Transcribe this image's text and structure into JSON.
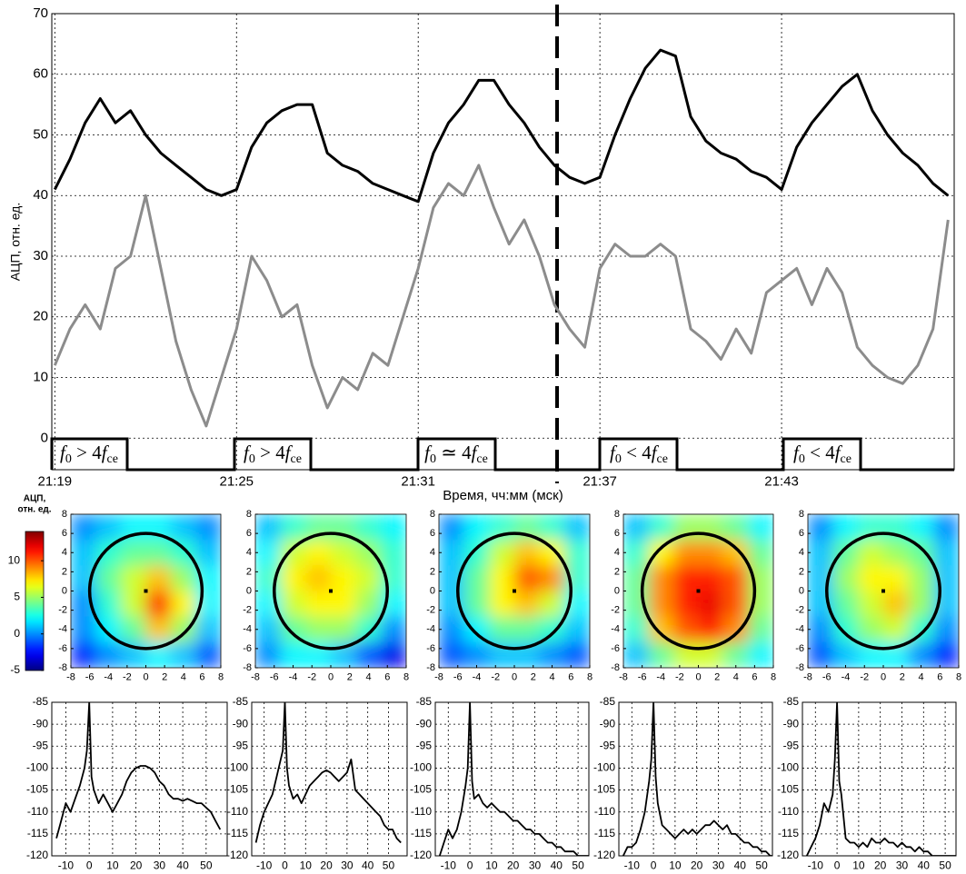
{
  "chart_data": [
    {
      "type": "line",
      "xlabel": "Время, чч:мм (мск)",
      "ylabel": "АЦП, отн. ед.",
      "x": [
        1279,
        1279.5,
        1280,
        1280.5,
        1281,
        1281.5,
        1282,
        1282.5,
        1283,
        1283.5,
        1284,
        1284.5,
        1285,
        1285.5,
        1286,
        1286.5,
        1287,
        1287.5,
        1288,
        1288.5,
        1289,
        1289.5,
        1290,
        1290.5,
        1291,
        1291.5,
        1292,
        1292.5,
        1293,
        1293.5,
        1294,
        1294.5,
        1295,
        1295.5,
        1296,
        1296.5,
        1297,
        1297.5,
        1298,
        1298.5,
        1299,
        1299.5,
        1300,
        1300.5,
        1301,
        1301.5,
        1302,
        1302.5,
        1303,
        1303.5,
        1304,
        1304.5,
        1305,
        1305.5,
        1306,
        1306.5,
        1307,
        1307.5,
        1308,
        1308.5
      ],
      "xlim": [
        1278.9,
        1308.7
      ],
      "xticks": [
        {
          "value": 1279,
          "label": "21:19"
        },
        {
          "value": 1285,
          "label": "21:25"
        },
        {
          "value": 1291,
          "label": "21:31"
        },
        {
          "value": 1297,
          "label": "21:37"
        },
        {
          "value": 1303,
          "label": "21:43"
        }
      ],
      "ylim": [
        -5.2,
        70
      ],
      "yticks": [
        0,
        10,
        20,
        30,
        40,
        50,
        60,
        70
      ],
      "grid": true,
      "series": [
        {
          "color": "#000000",
          "values": [
            41,
            46,
            52,
            56,
            52,
            54,
            50,
            47,
            45,
            43,
            41,
            40,
            41,
            48,
            52,
            54,
            55,
            55,
            47,
            45,
            44,
            42,
            41,
            40,
            39,
            47,
            52,
            55,
            59,
            59,
            55,
            52,
            48,
            45,
            43,
            42,
            43,
            50,
            56,
            61,
            64,
            63,
            53,
            49,
            47,
            46,
            44,
            43,
            41,
            48,
            52,
            55,
            58,
            60,
            54,
            50,
            47,
            45,
            42,
            40
          ]
        },
        {
          "color": "#8c8c8c",
          "values": [
            12,
            18,
            22,
            18,
            28,
            30,
            40,
            28,
            16,
            8,
            2,
            10,
            18,
            30,
            26,
            20,
            22,
            12,
            5,
            10,
            8,
            14,
            12,
            20,
            28,
            38,
            42,
            40,
            45,
            38,
            32,
            36,
            30,
            22,
            18,
            15,
            28,
            32,
            30,
            30,
            32,
            30,
            18,
            16,
            13,
            18,
            14,
            24,
            26,
            28,
            22,
            28,
            24,
            15,
            12,
            10,
            9,
            12,
            18,
            36
          ]
        }
      ],
      "annotations": [
        {
          "parts": [
            "f",
            "0",
            " > 4",
            "f",
            "ce"
          ]
        },
        {
          "parts": [
            "f",
            "0",
            " > 4",
            "f",
            "ce"
          ]
        },
        {
          "parts": [
            "f",
            "0",
            " ≃ 4",
            "f",
            "ce"
          ]
        },
        {
          "parts": [
            "f",
            "0",
            " < 4",
            "f",
            "ce"
          ]
        },
        {
          "parts": [
            "f",
            "0",
            " < 4",
            "f",
            "ce"
          ]
        }
      ]
    },
    {
      "type": "colorbar",
      "label": [
        "АЦП,",
        "отн. ед."
      ],
      "lim": [
        -5,
        14
      ],
      "ticks": [
        -5,
        0,
        5,
        10
      ]
    },
    {
      "type": "heatmap",
      "xlim": [
        -8,
        8
      ],
      "ylim": [
        -8,
        8
      ],
      "xticks": [
        -8,
        -6,
        -4,
        -2,
        0,
        2,
        4,
        6,
        8
      ],
      "yticks": [
        -8,
        -6,
        -4,
        -2,
        0,
        2,
        4,
        6,
        8
      ],
      "z": [
        [
          0,
          1,
          2,
          2,
          1,
          0
        ],
        [
          1,
          3,
          4,
          4,
          3,
          1
        ],
        [
          1,
          4,
          6,
          8,
          5,
          2
        ],
        [
          0,
          3,
          6,
          11,
          7,
          2
        ],
        [
          0,
          2,
          4,
          8,
          5,
          1
        ],
        [
          -2,
          0,
          1,
          2,
          1,
          -1
        ]
      ]
    },
    {
      "type": "heatmap",
      "xlim": [
        -8,
        8
      ],
      "ylim": [
        -8,
        8
      ],
      "xticks": [
        -8,
        -6,
        -4,
        -2,
        0,
        2,
        4,
        6,
        8
      ],
      "yticks": [
        -8,
        -6,
        -4,
        -2,
        0,
        2,
        4,
        6,
        8
      ],
      "z": [
        [
          1,
          3,
          4,
          4,
          3,
          2
        ],
        [
          2,
          6,
          7,
          6,
          5,
          3
        ],
        [
          3,
          7,
          8,
          7,
          6,
          3
        ],
        [
          2,
          6,
          7,
          7,
          5,
          2
        ],
        [
          1,
          4,
          5,
          5,
          3,
          0
        ],
        [
          0,
          2,
          2,
          1,
          -1,
          -3
        ]
      ]
    },
    {
      "type": "heatmap",
      "xlim": [
        -8,
        8
      ],
      "ylim": [
        -8,
        8
      ],
      "xticks": [
        -8,
        -6,
        -4,
        -2,
        0,
        2,
        4,
        6,
        8
      ],
      "yticks": [
        -8,
        -6,
        -4,
        -2,
        0,
        2,
        4,
        6,
        8
      ],
      "z": [
        [
          0,
          2,
          3,
          4,
          3,
          1
        ],
        [
          1,
          3,
          6,
          8,
          7,
          3
        ],
        [
          1,
          4,
          7,
          10,
          9,
          3
        ],
        [
          1,
          4,
          7,
          8,
          6,
          2
        ],
        [
          0,
          2,
          4,
          4,
          3,
          1
        ],
        [
          -1,
          0,
          1,
          1,
          0,
          -1
        ]
      ]
    },
    {
      "type": "heatmap",
      "xlim": [
        -8,
        8
      ],
      "ylim": [
        -8,
        8
      ],
      "xticks": [
        -8,
        -6,
        -4,
        -2,
        0,
        2,
        4,
        6,
        8
      ],
      "yticks": [
        -8,
        -6,
        -4,
        -2,
        0,
        2,
        4,
        6,
        8
      ],
      "z": [
        [
          1,
          3,
          5,
          5,
          4,
          2
        ],
        [
          3,
          7,
          9,
          9,
          8,
          4
        ],
        [
          4,
          9,
          11,
          11,
          10,
          5
        ],
        [
          4,
          9,
          11,
          12,
          10,
          5
        ],
        [
          3,
          8,
          10,
          11,
          9,
          4
        ],
        [
          1,
          4,
          6,
          6,
          4,
          2
        ]
      ]
    },
    {
      "type": "heatmap",
      "xlim": [
        -8,
        8
      ],
      "ylim": [
        -8,
        8
      ],
      "xticks": [
        -8,
        -6,
        -4,
        -2,
        0,
        2,
        4,
        6,
        8
      ],
      "yticks": [
        -8,
        -6,
        -4,
        -2,
        0,
        2,
        4,
        6,
        8
      ],
      "z": [
        [
          0,
          2,
          3,
          3,
          2,
          0
        ],
        [
          1,
          4,
          6,
          5,
          4,
          1
        ],
        [
          1,
          5,
          7,
          7,
          5,
          1
        ],
        [
          1,
          4,
          6,
          8,
          5,
          1
        ],
        [
          0,
          3,
          5,
          6,
          3,
          0
        ],
        [
          -1,
          1,
          2,
          2,
          0,
          -2
        ]
      ]
    },
    {
      "type": "line",
      "xlim": [
        -16,
        59
      ],
      "ylim": [
        -120,
        -85
      ],
      "xticks": [
        -10,
        0,
        10,
        20,
        30,
        40,
        50
      ],
      "yticks": [
        -120,
        -115,
        -110,
        -105,
        -100,
        -95,
        -90,
        -85
      ],
      "grid": true,
      "x": [
        -14,
        -12,
        -10,
        -8,
        -6,
        -4,
        -2,
        -1,
        0,
        1,
        2,
        4,
        6,
        8,
        10,
        12,
        14,
        16,
        18,
        20,
        22,
        24,
        26,
        28,
        30,
        32,
        34,
        36,
        38,
        40,
        42,
        44,
        46,
        48,
        50,
        52,
        54,
        56
      ],
      "series": [
        {
          "color": "#000000",
          "values": [
            -116,
            -112,
            -108,
            -110,
            -107,
            -104,
            -100,
            -96,
            -85,
            -102,
            -105,
            -108,
            -106,
            -108,
            -110,
            -108,
            -106,
            -103,
            -101,
            -100,
            -99.5,
            -99.5,
            -100,
            -101,
            -103,
            -104,
            -106,
            -107,
            -107,
            -107.5,
            -107,
            -107.5,
            -108,
            -108,
            -109,
            -110,
            -112,
            -114
          ]
        }
      ]
    },
    {
      "type": "line",
      "xlim": [
        -16,
        59
      ],
      "ylim": [
        -120,
        -85
      ],
      "xticks": [
        -10,
        0,
        10,
        20,
        30,
        40,
        50
      ],
      "yticks": [
        -120,
        -115,
        -110,
        -105,
        -100,
        -95,
        -90,
        -85
      ],
      "grid": true,
      "x": [
        -14,
        -12,
        -10,
        -8,
        -6,
        -4,
        -2,
        -1,
        0,
        1,
        2,
        4,
        6,
        8,
        10,
        12,
        14,
        16,
        18,
        20,
        22,
        24,
        26,
        28,
        30,
        32,
        34,
        36,
        38,
        40,
        42,
        44,
        46,
        48,
        50,
        52,
        54,
        56
      ],
      "series": [
        {
          "color": "#000000",
          "values": [
            -117,
            -113,
            -110,
            -108,
            -106,
            -102,
            -98,
            -96,
            -85,
            -100,
            -104,
            -107,
            -106,
            -108,
            -106,
            -104,
            -103,
            -102,
            -101,
            -100.5,
            -101,
            -102,
            -103,
            -102,
            -101,
            -98,
            -105,
            -106,
            -107,
            -108,
            -109,
            -110,
            -111,
            -113,
            -114,
            -114,
            -116,
            -117
          ]
        }
      ]
    },
    {
      "type": "line",
      "xlim": [
        -16,
        55
      ],
      "ylim": [
        -120,
        -85
      ],
      "xticks": [
        -10,
        0,
        10,
        20,
        30,
        40,
        50
      ],
      "yticks": [
        -120,
        -115,
        -110,
        -105,
        -100,
        -95,
        -90,
        -85
      ],
      "grid": true,
      "x": [
        -14,
        -12,
        -10,
        -8,
        -6,
        -4,
        -2,
        -1,
        0,
        1,
        2,
        4,
        6,
        8,
        10,
        12,
        14,
        16,
        18,
        20,
        22,
        24,
        26,
        28,
        30,
        32,
        34,
        36,
        38,
        40,
        42,
        44,
        46,
        48,
        50,
        52,
        54,
        56
      ],
      "series": [
        {
          "color": "#000000",
          "values": [
            -120,
            -117,
            -114,
            -116,
            -114,
            -110,
            -104,
            -100,
            -85,
            -103,
            -107,
            -106,
            -108,
            -109,
            -108,
            -109,
            -110,
            -110,
            -111,
            -112,
            -112,
            -113,
            -114,
            -114,
            -115,
            -115,
            -116,
            -117,
            -117,
            -118,
            -118,
            -119,
            -119,
            -119,
            -120,
            -120,
            -120,
            -120
          ]
        }
      ]
    },
    {
      "type": "line",
      "xlim": [
        -16,
        55
      ],
      "ylim": [
        -120,
        -85
      ],
      "xticks": [
        -10,
        0,
        10,
        20,
        30,
        40,
        50
      ],
      "yticks": [
        -120,
        -115,
        -110,
        -105,
        -100,
        -95,
        -90,
        -85
      ],
      "grid": true,
      "x": [
        -14,
        -12,
        -10,
        -8,
        -6,
        -4,
        -2,
        -1,
        0,
        1,
        2,
        4,
        6,
        8,
        10,
        12,
        14,
        16,
        18,
        20,
        22,
        24,
        26,
        28,
        30,
        32,
        34,
        36,
        38,
        40,
        42,
        44,
        46,
        48,
        50,
        52,
        54,
        56
      ],
      "series": [
        {
          "color": "#000000",
          "values": [
            -120,
            -118,
            -118,
            -117,
            -114,
            -110,
            -103,
            -98,
            -85,
            -102,
            -108,
            -113,
            -114,
            -115,
            -116,
            -115,
            -114,
            -115,
            -114,
            -115,
            -114,
            -113,
            -113,
            -112,
            -113,
            -114,
            -113,
            -115,
            -115,
            -116,
            -117,
            -117,
            -118,
            -118,
            -119,
            -119,
            -120,
            -120
          ]
        }
      ]
    },
    {
      "type": "line",
      "xlim": [
        -16,
        55
      ],
      "ylim": [
        -120,
        -85
      ],
      "xticks": [
        -10,
        0,
        10,
        20,
        30,
        40,
        50
      ],
      "yticks": [
        -120,
        -115,
        -110,
        -105,
        -100,
        -95,
        -90,
        -85
      ],
      "grid": true,
      "x": [
        -14,
        -12,
        -10,
        -8,
        -6,
        -4,
        -2,
        -1,
        0,
        1,
        2,
        4,
        6,
        8,
        10,
        12,
        14,
        16,
        18,
        20,
        22,
        24,
        26,
        28,
        30,
        32,
        34,
        36,
        38,
        40,
        42,
        44,
        46,
        48,
        50,
        52,
        54,
        56
      ],
      "series": [
        {
          "color": "#000000",
          "values": [
            -120,
            -118,
            -116,
            -113,
            -108,
            -110,
            -106,
            -98,
            -85,
            -103,
            -106,
            -116,
            -117,
            -117,
            -118,
            -117,
            -118,
            -116,
            -117,
            -117,
            -116,
            -117,
            -117,
            -118,
            -117,
            -118,
            -118,
            -119,
            -118,
            -119,
            -119,
            -120,
            -120,
            -120,
            -120,
            -120,
            -120,
            -120
          ]
        }
      ]
    }
  ]
}
